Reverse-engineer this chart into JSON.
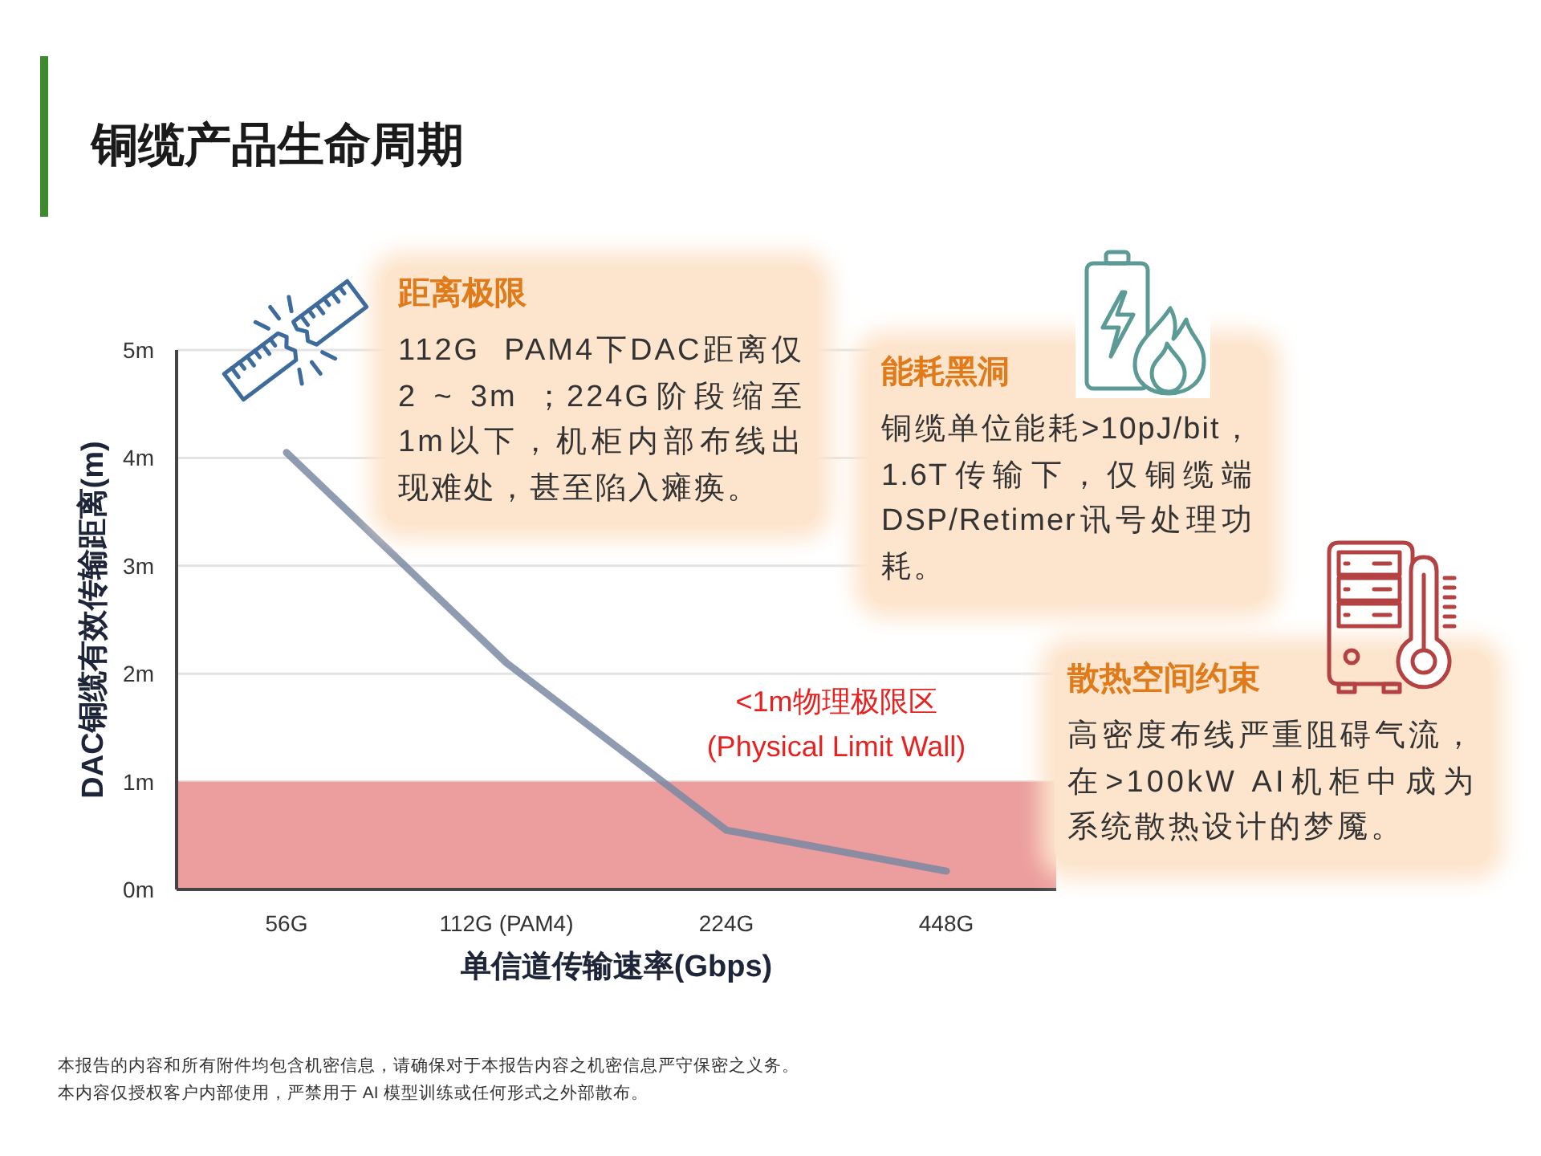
{
  "chart_data": {
    "type": "line",
    "title": "铜缆产品生命周期",
    "xlabel": "单信道传输速率(Gbps)",
    "ylabel": "DAC铜缆有效传输距离(m)",
    "categories": [
      "56G",
      "112G (PAM4)",
      "224G",
      "448G"
    ],
    "series": [
      {
        "color": "#7a8aa2",
        "values": [
          4.05,
          2.1,
          0.55,
          0.17
        ]
      }
    ],
    "ylim": [
      0,
      5
    ],
    "yticks": [
      {
        "value": 0,
        "label": "0m"
      },
      {
        "value": 1,
        "label": "1m"
      },
      {
        "value": 2,
        "label": "2m"
      },
      {
        "value": 3,
        "label": "3m"
      },
      {
        "value": 4,
        "label": "4m"
      },
      {
        "value": 5,
        "label": "5m"
      }
    ],
    "grid": "y",
    "bands": [
      {
        "axis": "y",
        "from": 0,
        "to": 1,
        "label": "<1m物理极限区\n(Physical Limit Wall)",
        "color": "#ec9d9d"
      }
    ],
    "annotations": [
      "距离极限",
      "112G  PAM4下DAC距离仅2 ~ 3m ；224G阶段缩至1m以下，机柜内部布线出现难处，甚至陷入瘫痪。",
      "能耗黑洞",
      "铜缆单位能耗>10pJ/bit，1.6T传输下，仅铜缆端DSP/Retimer讯号处理功耗。",
      "散热空间约束",
      "高密度布线严重阻碍气流，在>100kW AI机柜中成为系统散热设计的梦魇。",
      "本报告的内容和所有附件均包含机密信息，请确保对于本报告内容之机密信息严守保密之义务。",
      "本内容仅授权客户内部使用，严禁用于 AI 模型训练或任何形式之外部散布。"
    ]
  }
}
